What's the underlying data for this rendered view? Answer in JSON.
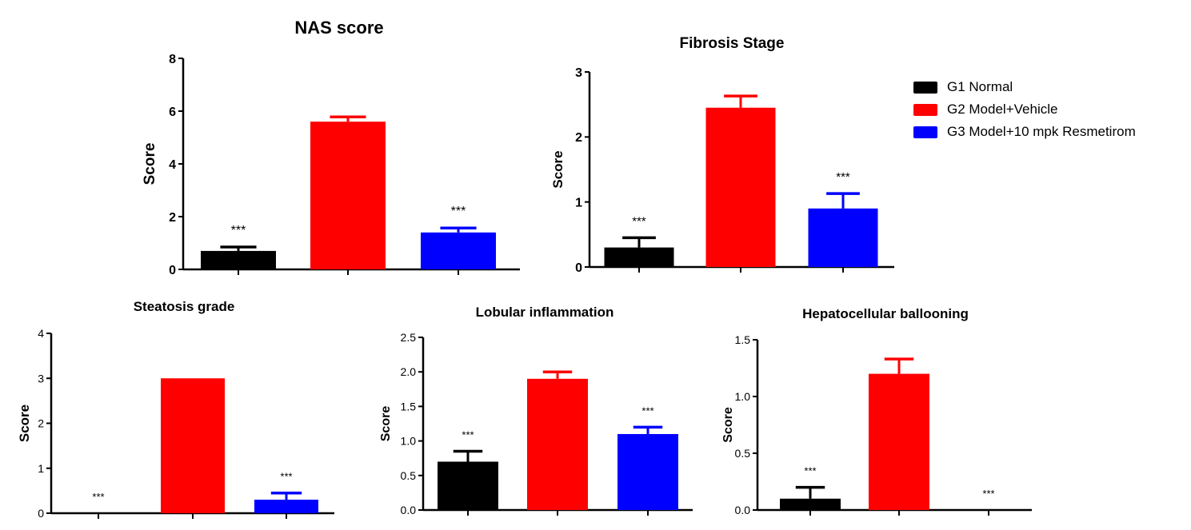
{
  "legend": {
    "items": [
      {
        "label": "G1 Normal",
        "color": "#000000"
      },
      {
        "label": "G2 Model+Vehicle",
        "color": "#ff0000"
      },
      {
        "label": "G3 Model+10 mpk Resmetirom",
        "color": "#0000ff"
      }
    ]
  },
  "chart_data": [
    {
      "type": "bar",
      "title": "NAS score",
      "xlabel": "",
      "ylabel": "Score",
      "ylim": [
        0,
        8
      ],
      "yticks": [
        "0",
        "2",
        "4",
        "6",
        "8"
      ],
      "ytick_values": [
        0,
        2,
        4,
        6,
        8
      ],
      "categories": [
        "G1 Normal",
        "G2 Model+Vehicle",
        "G3 Model+10 mpk Resmetirom"
      ],
      "values": [
        0.7,
        5.6,
        1.4
      ],
      "errors": [
        0.15,
        0.18,
        0.17
      ],
      "significance": [
        "***",
        "",
        "***"
      ],
      "grid": false
    },
    {
      "type": "bar",
      "title": "Fibrosis Stage",
      "xlabel": "",
      "ylabel": "Score",
      "ylim": [
        0,
        3
      ],
      "yticks": [
        "0",
        "1",
        "2",
        "3"
      ],
      "ytick_values": [
        0,
        1,
        2,
        3
      ],
      "categories": [
        "G1 Normal",
        "G2 Model+Vehicle",
        "G3 Model+10 mpk Resmetirom"
      ],
      "values": [
        0.3,
        2.45,
        0.9
      ],
      "errors": [
        0.15,
        0.18,
        0.23
      ],
      "significance": [
        "***",
        "",
        "***"
      ],
      "grid": false
    },
    {
      "type": "bar",
      "title": "Steatosis grade",
      "xlabel": "",
      "ylabel": "Score",
      "ylim": [
        0,
        4
      ],
      "yticks": [
        "0",
        "1",
        "2",
        "3",
        "4"
      ],
      "ytick_values": [
        0,
        1,
        2,
        3,
        4
      ],
      "categories": [
        "G1 Normal",
        "G2 Model+Vehicle",
        "G3 Model+10 mpk Resmetirom"
      ],
      "values": [
        0,
        3.0,
        0.3
      ],
      "errors": [
        0,
        0,
        0.15
      ],
      "significance": [
        "***",
        "",
        "***"
      ],
      "grid": false
    },
    {
      "type": "bar",
      "title": "Lobular inflammation",
      "xlabel": "",
      "ylabel": "Score",
      "ylim": [
        0,
        2.5
      ],
      "yticks": [
        "0.0",
        "0.5",
        "1.0",
        "1.5",
        "2.0",
        "2.5"
      ],
      "ytick_values": [
        0,
        0.5,
        1.0,
        1.5,
        2.0,
        2.5
      ],
      "categories": [
        "G1 Normal",
        "G2 Model+Vehicle",
        "G3 Model+10 mpk Resmetirom"
      ],
      "values": [
        0.7,
        1.9,
        1.1
      ],
      "errors": [
        0.15,
        0.1,
        0.1
      ],
      "significance": [
        "***",
        "",
        "***"
      ],
      "grid": false
    },
    {
      "type": "bar",
      "title": "Hepatocellular ballooning",
      "xlabel": "",
      "ylabel": "Score",
      "ylim": [
        0,
        1.5
      ],
      "yticks": [
        "0.0",
        "0.5",
        "1.0",
        "1.5"
      ],
      "ytick_values": [
        0,
        0.5,
        1.0,
        1.5
      ],
      "categories": [
        "G1 Normal",
        "G2 Model+Vehicle",
        "G3 Model+10 mpk Resmetirom"
      ],
      "values": [
        0.1,
        1.2,
        0
      ],
      "errors": [
        0.1,
        0.13,
        0
      ],
      "significance": [
        "***",
        "",
        "***"
      ],
      "grid": false
    }
  ]
}
